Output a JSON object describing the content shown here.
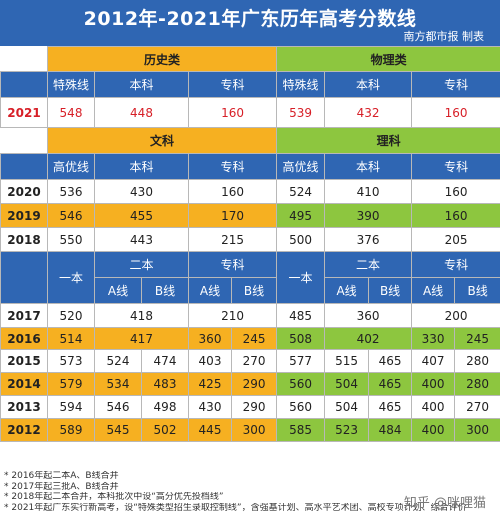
{
  "title": "2012年-2021年广东历年高考分数线",
  "subtitle": "南方都市报 制表",
  "section_2021": {
    "history_label": "历史类",
    "physics_label": "物理类",
    "cols": [
      "特殊线",
      "本科",
      "专科",
      "特殊线",
      "本科",
      "专科"
    ],
    "year": "2021",
    "values": [
      "548",
      "448",
      "160",
      "539",
      "432",
      "160"
    ]
  },
  "section_1820": {
    "arts_label": "文科",
    "sci_label": "理科",
    "cols": [
      "高优线",
      "本科",
      "专科",
      "高优线",
      "本科",
      "专科"
    ],
    "rows": [
      {
        "year": "2020",
        "values": [
          "536",
          "430",
          "160",
          "524",
          "410",
          "160"
        ]
      },
      {
        "year": "2019",
        "values": [
          "546",
          "455",
          "170",
          "495",
          "390",
          "160"
        ]
      },
      {
        "year": "2018",
        "values": [
          "550",
          "443",
          "215",
          "500",
          "376",
          "205"
        ]
      }
    ]
  },
  "section_1217": {
    "yiben": "一本",
    "erben": "二本",
    "zhuanke": "专科",
    "a_line": "A线",
    "b_line": "B线",
    "rows": [
      {
        "year": "2017",
        "a": {
          "yiben": "520",
          "erben": "418",
          "zhuanke": "210"
        },
        "s": {
          "yiben": "485",
          "erben": "360",
          "zhuanke": "200"
        }
      },
      {
        "year": "2016",
        "a": {
          "yiben": "514",
          "erben": "417",
          "za": "360",
          "zb": "245"
        },
        "s": {
          "yiben": "508",
          "erben": "402",
          "za": "330",
          "zb": "245"
        }
      },
      {
        "year": "2015",
        "a": {
          "yiben": "573",
          "ea": "524",
          "eb": "474",
          "za": "403",
          "zb": "270"
        },
        "s": {
          "yiben": "577",
          "ea": "515",
          "eb": "465",
          "za": "407",
          "zb": "280"
        }
      },
      {
        "year": "2014",
        "a": {
          "yiben": "579",
          "ea": "534",
          "eb": "483",
          "za": "425",
          "zb": "290"
        },
        "s": {
          "yiben": "560",
          "ea": "504",
          "eb": "465",
          "za": "400",
          "zb": "280"
        }
      },
      {
        "year": "2013",
        "a": {
          "yiben": "594",
          "ea": "546",
          "eb": "498",
          "za": "430",
          "zb": "290"
        },
        "s": {
          "yiben": "560",
          "ea": "504",
          "eb": "465",
          "za": "400",
          "zb": "270"
        }
      },
      {
        "year": "2012",
        "a": {
          "yiben": "589",
          "ea": "545",
          "eb": "502",
          "za": "445",
          "zb": "300"
        },
        "s": {
          "yiben": "585",
          "ea": "523",
          "eb": "484",
          "za": "400",
          "zb": "300"
        }
      }
    ]
  },
  "notes": [
    "* 2016年起二本A、B线合并",
    "* 2017年起三批A、B线合并",
    "* 2018年起二本合并，本科批次中设“高分优先投档线”",
    "* 2021年起广东实行新高考，设“特殊类型招生录取控制线”，含强基计划、高水平艺术团、高校专项计划、综合评价"
  ],
  "watermark": "知乎 @咪哩猫",
  "colors": {
    "header_blue": "#2f66b3",
    "arts_orange": "#f6b021",
    "sci_green": "#8dc63f",
    "highlight_red": "#d71f27"
  }
}
